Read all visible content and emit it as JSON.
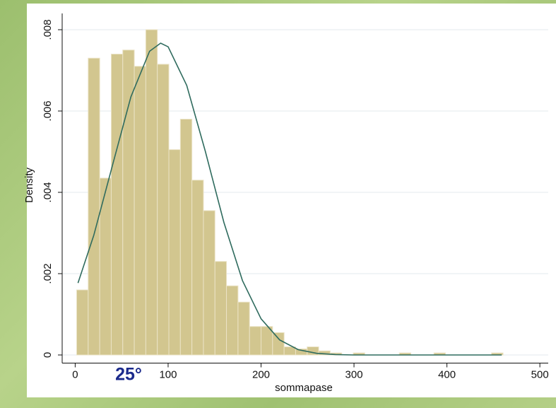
{
  "chart_data": {
    "type": "histogram",
    "bins": [
      1.6,
      14,
      26.4,
      38.8,
      51.2,
      63.6,
      76,
      88.4,
      100.8,
      113.2,
      125.6,
      138,
      150.4,
      162.8,
      175.2,
      187.6,
      200,
      212.4,
      224.8,
      237.2,
      249.6,
      262,
      274.4,
      286.8,
      299.2,
      311.6,
      324,
      336.4,
      348.8,
      361.2,
      373.6,
      386,
      398.4,
      410.8,
      423.2,
      435.6,
      448,
      460.4
    ],
    "values": [
      0.0016,
      0.0073,
      0.00435,
      0.0074,
      0.0075,
      0.0071,
      0.008,
      0.00715,
      0.00505,
      0.0058,
      0.0043,
      0.00355,
      0.0023,
      0.0017,
      0.0013,
      0.0007,
      0.0007,
      0.00055,
      0.0002,
      0.00015,
      0.0002,
      0.0001,
      5e-05,
      0,
      5e-05,
      0,
      0,
      0,
      5e-05,
      0,
      0,
      5e-05,
      0,
      0,
      0,
      0,
      5e-05
    ],
    "color": "#d2c68f",
    "density_curve": {
      "color": "#2f6b5e",
      "x": [
        3,
        20,
        40,
        60,
        80,
        92,
        100,
        120,
        140,
        160,
        180,
        200,
        220,
        240,
        260,
        280,
        300,
        459
      ],
      "values": [
        0.00177,
        0.00294,
        0.00465,
        0.00635,
        0.00747,
        0.00767,
        0.00758,
        0.00663,
        0.00501,
        0.00326,
        0.00183,
        0.00089,
        0.00037,
        0.00013,
        4e-05,
        1e-05,
        0,
        0
      ]
    },
    "xlabel": "sommapase",
    "ylabel": "Density",
    "annotation": "25°",
    "xlim": [
      -14,
      509
    ],
    "ylim": [
      -0.0002,
      0.0084
    ],
    "xticks": [
      0,
      100,
      200,
      300,
      400,
      500
    ],
    "yticks": [
      0,
      {
        "value": 0.002,
        "label": ".002"
      },
      {
        "value": 0.004,
        "label": ".004"
      },
      {
        "value": 0.006,
        "label": ".006"
      },
      {
        "value": 0.008,
        "label": ".008"
      }
    ],
    "grid": true
  }
}
